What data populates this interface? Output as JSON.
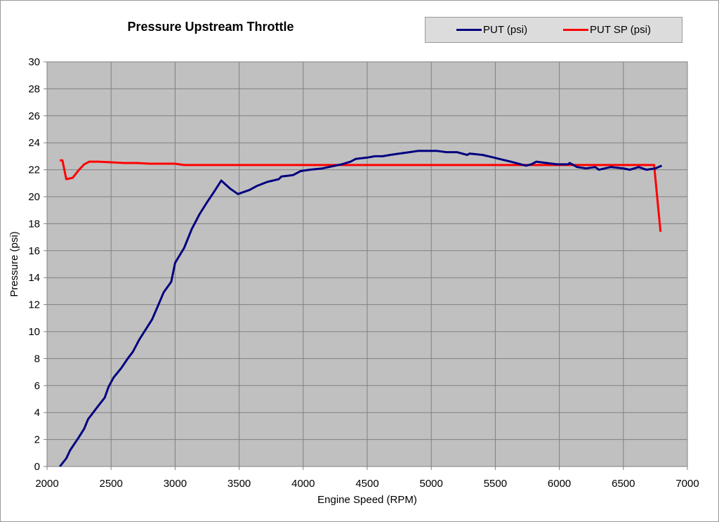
{
  "chart_data": {
    "type": "line",
    "title": "Pressure Upstream Throttle",
    "xlabel": "Engine Speed (RPM)",
    "ylabel": "Pressure (psi)",
    "xlim": [
      2000,
      7000
    ],
    "ylim": [
      0,
      30
    ],
    "x_ticks": [
      2000,
      2500,
      3000,
      3500,
      4000,
      4500,
      5000,
      5500,
      6000,
      6500,
      7000
    ],
    "y_ticks": [
      0,
      2,
      4,
      6,
      8,
      10,
      12,
      14,
      16,
      18,
      20,
      22,
      24,
      26,
      28,
      30
    ],
    "grid": true,
    "legend_position": "top-right",
    "series": [
      {
        "name": "PUT (psi)",
        "color": "#000080",
        "points": [
          [
            2100,
            0.0
          ],
          [
            2150,
            0.6
          ],
          [
            2180,
            1.2
          ],
          [
            2250,
            2.2
          ],
          [
            2290,
            2.8
          ],
          [
            2320,
            3.5
          ],
          [
            2360,
            4.0
          ],
          [
            2400,
            4.5
          ],
          [
            2450,
            5.1
          ],
          [
            2480,
            5.9
          ],
          [
            2520,
            6.6
          ],
          [
            2580,
            7.3
          ],
          [
            2630,
            8.0
          ],
          [
            2670,
            8.5
          ],
          [
            2720,
            9.4
          ],
          [
            2780,
            10.3
          ],
          [
            2820,
            10.9
          ],
          [
            2870,
            12.0
          ],
          [
            2910,
            12.9
          ],
          [
            2970,
            13.7
          ],
          [
            3000,
            15.1
          ],
          [
            3070,
            16.2
          ],
          [
            3130,
            17.6
          ],
          [
            3190,
            18.7
          ],
          [
            3250,
            19.6
          ],
          [
            3300,
            20.3
          ],
          [
            3360,
            21.2
          ],
          [
            3430,
            20.6
          ],
          [
            3490,
            20.2
          ],
          [
            3580,
            20.5
          ],
          [
            3640,
            20.8
          ],
          [
            3720,
            21.1
          ],
          [
            3810,
            21.3
          ],
          [
            3830,
            21.5
          ],
          [
            3920,
            21.6
          ],
          [
            3980,
            21.9
          ],
          [
            4050,
            22.0
          ],
          [
            4150,
            22.1
          ],
          [
            4250,
            22.3
          ],
          [
            4300,
            22.4
          ],
          [
            4370,
            22.6
          ],
          [
            4410,
            22.8
          ],
          [
            4500,
            22.9
          ],
          [
            4560,
            23.0
          ],
          [
            4620,
            23.0
          ],
          [
            4680,
            23.1
          ],
          [
            4750,
            23.2
          ],
          [
            4830,
            23.3
          ],
          [
            4900,
            23.4
          ],
          [
            4960,
            23.4
          ],
          [
            5040,
            23.4
          ],
          [
            5120,
            23.3
          ],
          [
            5200,
            23.3
          ],
          [
            5280,
            23.1
          ],
          [
            5300,
            23.2
          ],
          [
            5400,
            23.1
          ],
          [
            5490,
            22.9
          ],
          [
            5530,
            22.8
          ],
          [
            5620,
            22.6
          ],
          [
            5700,
            22.4
          ],
          [
            5740,
            22.3
          ],
          [
            5780,
            22.4
          ],
          [
            5820,
            22.6
          ],
          [
            5900,
            22.5
          ],
          [
            5980,
            22.4
          ],
          [
            6070,
            22.4
          ],
          [
            6080,
            22.5
          ],
          [
            6140,
            22.2
          ],
          [
            6210,
            22.1
          ],
          [
            6280,
            22.2
          ],
          [
            6310,
            22.0
          ],
          [
            6400,
            22.2
          ],
          [
            6500,
            22.1
          ],
          [
            6550,
            22.0
          ],
          [
            6620,
            22.2
          ],
          [
            6680,
            22.0
          ],
          [
            6750,
            22.1
          ],
          [
            6800,
            22.3
          ]
        ]
      },
      {
        "name": "PUT SP (psi)",
        "color": "#ff0000",
        "points": [
          [
            2100,
            22.7
          ],
          [
            2120,
            22.7
          ],
          [
            2150,
            21.3
          ],
          [
            2200,
            21.4
          ],
          [
            2250,
            22.0
          ],
          [
            2290,
            22.4
          ],
          [
            2330,
            22.6
          ],
          [
            2400,
            22.6
          ],
          [
            2500,
            22.55
          ],
          [
            2600,
            22.5
          ],
          [
            2700,
            22.5
          ],
          [
            2800,
            22.45
          ],
          [
            3000,
            22.45
          ],
          [
            3070,
            22.35
          ],
          [
            3200,
            22.35
          ],
          [
            3500,
            22.35
          ],
          [
            4000,
            22.35
          ],
          [
            5000,
            22.35
          ],
          [
            6000,
            22.35
          ],
          [
            6740,
            22.35
          ],
          [
            6790,
            17.4
          ]
        ]
      }
    ]
  },
  "legend": {
    "items": [
      {
        "label": "PUT (psi)",
        "color": "#000080"
      },
      {
        "label": "PUT SP (psi)",
        "color": "#ff0000"
      }
    ]
  },
  "colors": {
    "plot_background": "#c0c0c0",
    "gridline": "#808080",
    "legend_background": "#dcdcdc"
  }
}
